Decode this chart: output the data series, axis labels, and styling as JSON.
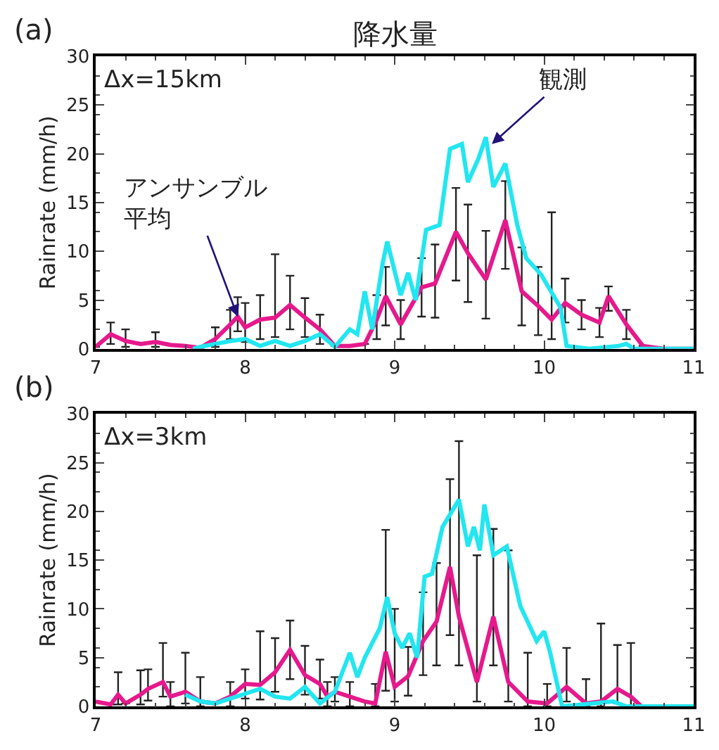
{
  "chart_data": [
    {
      "type": "line",
      "title": "降水量",
      "ylabel": "Rainrate (mm/h)",
      "xlim": [
        7,
        11
      ],
      "xticks": [
        7,
        8,
        9,
        10,
        11
      ],
      "ylim": [
        0,
        30
      ],
      "yticks": [
        0,
        5,
        10,
        15,
        20,
        25,
        30
      ],
      "marker": "none",
      "line_style": "solid",
      "annotations": [
        "(a)",
        "Δx=15km",
        {
          "text": "アンサンブル平均",
          "x": 7.95,
          "y": 3.3
        },
        {
          "text": "観測",
          "x": 9.65,
          "y": 21
        }
      ],
      "series": [
        {
          "color": "#e6198c",
          "x": [
            7.0,
            7.1,
            7.2,
            7.3,
            7.4,
            7.5,
            7.6,
            7.7,
            7.8,
            7.9,
            7.95,
            8.0,
            8.1,
            8.2,
            8.3,
            8.4,
            8.5,
            8.6,
            8.7,
            8.8,
            8.88,
            8.94,
            9.04,
            9.18,
            9.27,
            9.41,
            9.49,
            9.61,
            9.74,
            9.85,
            9.96,
            10.05,
            10.14,
            10.25,
            10.37,
            10.43,
            10.55,
            10.66,
            10.8,
            11.0
          ],
          "values": [
            0.2,
            1.5,
            0.8,
            0.5,
            0.7,
            0.4,
            0.3,
            0.1,
            1.0,
            2.5,
            3.3,
            2.2,
            3.0,
            3.2,
            4.5,
            3.2,
            2.0,
            0.3,
            0.3,
            0.5,
            3.0,
            5.4,
            2.5,
            6.3,
            6.7,
            12.0,
            9.8,
            7.1,
            13.2,
            5.9,
            4.4,
            3.0,
            4.7,
            3.5,
            2.7,
            5.4,
            2.5,
            0.3,
            0,
            0
          ],
          "errors": [
            null,
            [
              0.5,
              2.7
            ],
            [
              0.2,
              2.0
            ],
            null,
            [
              0.2,
              1.7
            ],
            null,
            null,
            null,
            [
              0.2,
              2.2
            ],
            [
              1.0,
              4.0
            ],
            [
              1.8,
              5.3
            ],
            [
              0.7,
              4.7
            ],
            [
              1.0,
              5.5
            ],
            [
              1.2,
              9.7
            ],
            [
              2.0,
              7.5
            ],
            [
              1.2,
              5.2
            ],
            [
              0.5,
              3.5
            ],
            null,
            null,
            null,
            [
              1.0,
              5.5
            ],
            [
              2.4,
              8.4
            ],
            [
              1.0,
              5.0
            ],
            [
              3.3,
              9.3
            ],
            [
              3.2,
              10.7
            ],
            [
              7.0,
              16.5
            ],
            [
              4.8,
              14.8
            ],
            [
              3.1,
              12.1
            ],
            [
              8.2,
              17.2
            ],
            [
              2.4,
              10.4
            ],
            [
              1.4,
              8.4
            ],
            [
              1.0,
              14.0
            ],
            [
              2.7,
              7.2
            ],
            [
              2.0,
              5.0
            ],
            [
              1.2,
              4.2
            ],
            [
              3.9,
              6.4
            ],
            [
              1.0,
              4.0
            ],
            null,
            null,
            null
          ]
        },
        {
          "color": "#22e6f0",
          "x": [
            7.65,
            7.7,
            7.8,
            7.9,
            8.0,
            8.1,
            8.2,
            8.3,
            8.4,
            8.5,
            8.6,
            8.7,
            8.75,
            8.8,
            8.85,
            8.92,
            8.95,
            9.04,
            9.09,
            9.14,
            9.21,
            9.3,
            9.37,
            9.45,
            9.49,
            9.56,
            9.61,
            9.66,
            9.74,
            9.82,
            9.88,
            9.98,
            10.11,
            10.15,
            10.3,
            10.5,
            10.55,
            10.6,
            11.0
          ],
          "values": [
            0,
            0.2,
            0.5,
            0.8,
            1.0,
            0.3,
            0.8,
            0.3,
            0.8,
            1.5,
            0.2,
            2.0,
            1.5,
            5.9,
            2.0,
            8.8,
            11,
            5.5,
            7.8,
            5.0,
            12.2,
            12.7,
            20.5,
            21,
            17.1,
            19.5,
            21.7,
            16.6,
            19.0,
            12.7,
            9.3,
            7.6,
            4.2,
            0.3,
            0,
            0.3,
            0.5,
            0,
            0
          ]
        }
      ]
    },
    {
      "type": "line",
      "ylabel": "Rainrate (mm/h)",
      "xlim": [
        7,
        11
      ],
      "xticks": [
        7,
        8,
        9,
        10,
        11
      ],
      "ylim": [
        0,
        30
      ],
      "yticks": [
        0,
        5,
        10,
        15,
        20,
        25,
        30
      ],
      "marker": "none",
      "line_style": "solid",
      "annotations": [
        "(b)",
        "Δx=3km"
      ],
      "series": [
        {
          "color": "#e6198c",
          "x": [
            7.0,
            7.1,
            7.15,
            7.2,
            7.3,
            7.35,
            7.45,
            7.5,
            7.6,
            7.7,
            7.8,
            7.9,
            8.0,
            8.1,
            8.2,
            8.3,
            8.4,
            8.5,
            8.55,
            8.6,
            8.7,
            8.8,
            8.87,
            8.94,
            9.0,
            9.09,
            9.19,
            9.28,
            9.37,
            9.43,
            9.55,
            9.66,
            9.76,
            9.89,
            10.02,
            10.15,
            10.28,
            10.38,
            10.49,
            10.58,
            10.65,
            11.0
          ],
          "values": [
            0.5,
            0.2,
            1.2,
            0.3,
            1.2,
            1.8,
            2.5,
            1.0,
            1.5,
            0.5,
            0.3,
            1.0,
            2.3,
            2.2,
            3.5,
            5.8,
            3.2,
            2.3,
            1.0,
            1.5,
            1.0,
            0.5,
            0.3,
            5.6,
            2.0,
            3.1,
            6.7,
            8.7,
            14.3,
            9.2,
            2.5,
            9.2,
            2.5,
            0.5,
            0.3,
            2.0,
            0.3,
            0.5,
            1.8,
            1.0,
            0,
            0
          ],
          "errors": [
            null,
            null,
            [
              0.2,
              3.5
            ],
            null,
            [
              0.2,
              3.7
            ],
            [
              0.6,
              3.8
            ],
            [
              1.0,
              6.5
            ],
            [
              0,
              2.5
            ],
            [
              0.3,
              5.5
            ],
            [
              0,
              3.0
            ],
            null,
            [
              0,
              2.5
            ],
            [
              0.8,
              3.8
            ],
            [
              0.7,
              7.7
            ],
            [
              1.5,
              7.0
            ],
            [
              2.8,
              8.8
            ],
            [
              1.2,
              6.2
            ],
            [
              0.8,
              4.8
            ],
            [
              0,
              2.5
            ],
            [
              0.5,
              3.0
            ],
            [
              0,
              2.5
            ],
            null,
            [
              0,
              2.3
            ],
            [
              1.6,
              18.1
            ],
            [
              0.5,
              10.0
            ],
            [
              1.1,
              6.1
            ],
            [
              3.2,
              11.7
            ],
            [
              4.2,
              14.7
            ],
            [
              7.3,
              23.3
            ],
            [
              4.2,
              27.2
            ],
            [
              0.5,
              15.5
            ],
            [
              4.2,
              18.2
            ],
            [
              0.5,
              16.0
            ],
            [
              0,
              5.5
            ],
            [
              0,
              2.3
            ],
            [
              0.5,
              6.0
            ],
            [
              0,
              2.8
            ],
            [
              0,
              8.5
            ],
            [
              0.3,
              6.3
            ],
            [
              0,
              6.5
            ],
            null,
            null
          ]
        },
        {
          "color": "#22e6f0",
          "x": [
            7.6,
            7.7,
            7.8,
            7.9,
            8.0,
            8.1,
            8.2,
            8.3,
            8.4,
            8.5,
            8.6,
            8.7,
            8.75,
            8.8,
            8.9,
            8.95,
            9.0,
            9.05,
            9.1,
            9.15,
            9.2,
            9.25,
            9.32,
            9.43,
            9.49,
            9.53,
            9.57,
            9.6,
            9.66,
            9.75,
            9.84,
            9.95,
            10.0,
            10.04,
            10.12,
            10.33,
            10.46,
            10.55,
            11.0
          ],
          "values": [
            1.2,
            0.5,
            0.3,
            0.8,
            1.3,
            1.8,
            1.0,
            0.8,
            2.0,
            0.3,
            1.5,
            5.5,
            3.0,
            5.0,
            8.0,
            11.2,
            7.5,
            6.0,
            7.5,
            5.0,
            13.3,
            13.6,
            18.4,
            21.2,
            16.4,
            18.4,
            16.0,
            20.7,
            15.5,
            16.4,
            10.3,
            6.7,
            7.7,
            5.5,
            0,
            0.3,
            0.5,
            0,
            0
          ]
        }
      ]
    }
  ]
}
